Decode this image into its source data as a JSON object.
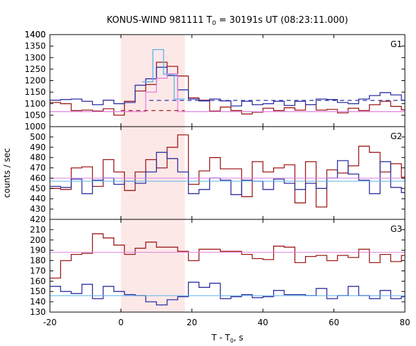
{
  "chart_data": {
    "type": "line",
    "title_main": "KONUS-WIND 981111 T",
    "title_sub": "0",
    "title_rest": " = 30191s UT (08:23:11.000)",
    "xlabel_main": "T - T",
    "xlabel_sub": "0",
    "xlabel_rest": ", s",
    "ylabel": "counts / sec",
    "xlim": [
      -20,
      80
    ],
    "xticks": [
      "-20",
      "0",
      "20",
      "40",
      "60",
      "80"
    ],
    "highlight": {
      "x0": 0,
      "x1": 18,
      "color": "#fde8e8"
    },
    "colors": {
      "red": "#9e1a1a",
      "blue": "#2b2fa0",
      "cyan": "#56b4e9",
      "pink": "#e080e0"
    },
    "panels": [
      {
        "label": "G1",
        "ylim": [
          1000,
          1400
        ],
        "yticks": [
          "1000",
          "1050",
          "1100",
          "1150",
          "1200",
          "1250",
          "1300",
          "1350",
          "1400"
        ],
        "series": [
          {
            "color": "red",
            "x0": -20,
            "step": 3,
            "values": [
              1105,
              1100,
              1070,
              1072,
              1068,
              1078,
              1050,
              1110,
              1155,
              1183,
              1280,
              1262,
              1220,
              1125,
              1115,
              1068,
              1085,
              1070,
              1055,
              1063,
              1080,
              1070,
              1082,
              1072,
              1095,
              1072,
              1075,
              1060,
              1080,
              1070,
              1095,
              1110,
              1088,
              1073
            ]
          },
          {
            "color": "blue",
            "x0": -20,
            "step": 3,
            "values": [
              1115,
              1118,
              1120,
              1110,
              1095,
              1115,
              1100,
              1105,
              1180,
              1208,
              1258,
              1222,
              1160,
              1120,
              1112,
              1120,
              1112,
              1090,
              1110,
              1095,
              1100,
              1110,
              1092,
              1110,
              1095,
              1120,
              1118,
              1105,
              1100,
              1120,
              1135,
              1148,
              1138,
              1115
            ]
          },
          {
            "color": "cyan",
            "x0": 6,
            "step": 3,
            "values": [
              1195,
              1335,
              1228,
              1120
            ]
          },
          {
            "color": "pink",
            "x0": -20,
            "step": 3,
            "values": [
              1065,
              1065,
              1065,
              1065,
              1065,
              1065,
              1065,
              1065,
              1065,
              1150,
              1210,
              1230,
              1065,
              1065,
              1065,
              1065,
              1065,
              1065,
              1065,
              1065,
              1065,
              1065,
              1065,
              1065,
              1065,
              1065,
              1065,
              1065,
              1065,
              1065,
              1065,
              1065,
              1065,
              1065
            ]
          }
        ],
        "fits": [
          {
            "color": "red",
            "y": 1070,
            "dash": true,
            "x_from": 0,
            "x_to": 18
          },
          {
            "color": "blue",
            "y": 1114,
            "dash": true,
            "x_from": 8,
            "x_to": 80
          }
        ]
      },
      {
        "label": "G2",
        "ylim": [
          420,
          510
        ],
        "yticks": [
          "420",
          "430",
          "440",
          "450",
          "460",
          "470",
          "480",
          "490",
          "500"
        ],
        "series": [
          {
            "color": "red",
            "x0": -20,
            "step": 3,
            "values": [
              450,
              449,
              470,
              471,
              452,
              478,
              466,
              448,
              466,
              478,
              470,
              490,
              502,
              454,
              467,
              480,
              469,
              469,
              442,
              476,
              466,
              470,
              473,
              436,
              476,
              432,
              468,
              465,
              472,
              491,
              485,
              466,
              474,
              461,
              449,
              479
            ]
          },
          {
            "color": "blue",
            "x0": -20,
            "step": 3,
            "values": [
              452,
              451,
              459,
              445,
              458,
              460,
              454,
              457,
              455,
              466,
              485,
              479,
              466,
              445,
              449,
              460,
              458,
              444,
              458,
              457,
              449,
              459,
              455,
              449,
              455,
              450,
              460,
              477,
              464,
              458,
              445,
              476,
              451,
              446,
              449,
              453
            ]
          },
          {
            "color": "cyan",
            "x0": -20,
            "step": 3,
            "values": [
              457,
              457,
              457,
              457,
              457,
              457,
              457,
              457,
              457,
              457,
              457,
              457,
              457,
              457,
              457,
              457,
              457,
              457,
              457,
              457,
              457,
              457,
              457,
              457,
              457,
              457,
              457,
              457,
              457,
              457,
              457,
              457,
              457,
              457
            ]
          },
          {
            "color": "pink",
            "x0": -20,
            "step": 3,
            "values": [
              460,
              460,
              460,
              460,
              460,
              460,
              460,
              460,
              460,
              460,
              460,
              460,
              460,
              460,
              460,
              460,
              460,
              460,
              460,
              460,
              460,
              460,
              460,
              460,
              460,
              460,
              460,
              460,
              460,
              460,
              460,
              460,
              460,
              460
            ]
          }
        ],
        "fits": []
      },
      {
        "label": "G3",
        "ylim": [
          130,
          220
        ],
        "yticks": [
          "130",
          "140",
          "150",
          "160",
          "170",
          "180",
          "190",
          "200",
          "210"
        ],
        "series": [
          {
            "color": "red",
            "x0": -20,
            "step": 3,
            "values": [
              163,
              180,
              186,
              187,
              206,
              202,
              195,
              186,
              192,
              198,
              193,
              193,
              189,
              180,
              191,
              191,
              189,
              189,
              186,
              182,
              181,
              194,
              193,
              178,
              184,
              185,
              180,
              185,
              183,
              191,
              178,
              186,
              179,
              185,
              184,
              183
            ]
          },
          {
            "color": "blue",
            "x0": -20,
            "step": 3,
            "values": [
              155,
              150,
              148,
              157,
              143,
              155,
              150,
              147,
              146,
              140,
              137,
              142,
              145,
              159,
              154,
              158,
              143,
              145,
              147,
              144,
              145,
              151,
              147,
              147,
              146,
              153,
              143,
              146,
              155,
              146,
              143,
              151,
              143,
              145,
              144,
              155
            ]
          },
          {
            "color": "cyan",
            "x0": -20,
            "step": 3,
            "values": [
              146,
              146,
              146,
              146,
              146,
              146,
              146,
              146,
              146,
              146,
              146,
              146,
              146,
              146,
              146,
              146,
              146,
              146,
              146,
              146,
              146,
              146,
              146,
              146,
              146,
              146,
              146,
              146,
              146,
              146,
              146,
              146,
              146,
              146
            ]
          },
          {
            "color": "pink",
            "x0": -20,
            "step": 3,
            "values": [
              188,
              188,
              188,
              188,
              188,
              188,
              188,
              188,
              188,
              188,
              188,
              188,
              188,
              188,
              188,
              188,
              188,
              188,
              188,
              188,
              188,
              188,
              188,
              188,
              188,
              188,
              188,
              188,
              188,
              188,
              188,
              188,
              188,
              188
            ]
          }
        ],
        "fits": []
      }
    ]
  }
}
